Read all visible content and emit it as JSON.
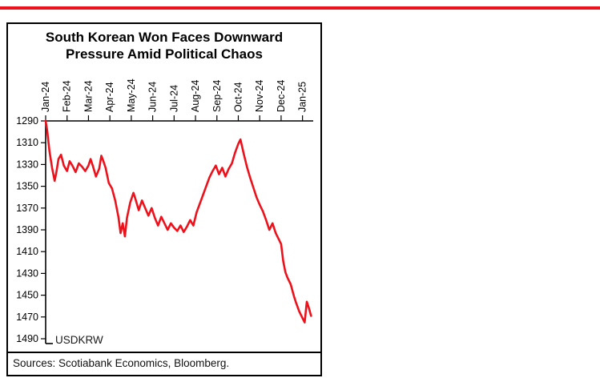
{
  "accent": {
    "color": "#EC111A"
  },
  "chart_card": {
    "title_line1": "South Korean Won Faces Downward",
    "title_line2": "Pressure Amid Political Chaos",
    "sources": "Sources: Scotiabank Economics, Bloomberg."
  },
  "chart_data": {
    "type": "line",
    "title": "South Korean Won Faces Downward Pressure Amid Political Chaos",
    "series_label": "USDKRW",
    "line_color": "#EC111A",
    "axis_color": "#000000",
    "x_tick_labels": [
      "Jan-24",
      "Feb-24",
      "Mar-24",
      "Apr-24",
      "May-24",
      "Jun-24",
      "Jul-24",
      "Aug-24",
      "Sep-24",
      "Oct-24",
      "Nov-24",
      "Dec-24",
      "Jan-25"
    ],
    "y_ticks": [
      1290,
      1310,
      1330,
      1350,
      1370,
      1390,
      1410,
      1430,
      1450,
      1470,
      1490
    ],
    "y_axis_inverted": true,
    "ylim": [
      1290,
      1490
    ],
    "xlim": [
      0,
      12.5
    ],
    "x_unit": "months since Jan-2024",
    "grid": false,
    "legend_position": "none",
    "x": [
      0,
      0.08,
      0.18,
      0.3,
      0.42,
      0.5,
      0.6,
      0.72,
      0.85,
      1,
      1.12,
      1.25,
      1.4,
      1.55,
      1.7,
      1.85,
      2,
      2.1,
      2.2,
      2.35,
      2.5,
      2.6,
      2.7,
      2.8,
      2.95,
      3.1,
      3.25,
      3.4,
      3.5,
      3.6,
      3.7,
      3.8,
      3.95,
      4.1,
      4.2,
      4.35,
      4.5,
      4.65,
      4.8,
      4.95,
      5.1,
      5.25,
      5.4,
      5.55,
      5.7,
      5.85,
      6,
      6.15,
      6.3,
      6.45,
      6.6,
      6.75,
      6.9,
      7.05,
      7.2,
      7.35,
      7.5,
      7.65,
      7.8,
      7.95,
      8.1,
      8.25,
      8.4,
      8.55,
      8.7,
      8.85,
      9,
      9.1,
      9.25,
      9.4,
      9.55,
      9.7,
      9.85,
      10,
      10.15,
      10.3,
      10.45,
      10.6,
      10.75,
      10.9,
      11,
      11.1,
      11.2,
      11.3,
      11.45,
      11.6,
      11.7,
      11.85,
      12,
      12.1,
      12.2,
      12.3,
      12.4
    ],
    "values": [
      1290,
      1300,
      1318,
      1333,
      1345,
      1337,
      1325,
      1321,
      1331,
      1336,
      1327,
      1331,
      1337,
      1329,
      1332,
      1336,
      1331,
      1325,
      1331,
      1341,
      1334,
      1322,
      1327,
      1333,
      1347,
      1352,
      1363,
      1378,
      1393,
      1384,
      1396,
      1379,
      1365,
      1356,
      1362,
      1372,
      1363,
      1370,
      1377,
      1370,
      1379,
      1386,
      1378,
      1384,
      1390,
      1384,
      1388,
      1391,
      1386,
      1392,
      1387,
      1381,
      1386,
      1374,
      1366,
      1358,
      1350,
      1342,
      1336,
      1331,
      1339,
      1333,
      1341,
      1334,
      1329,
      1319,
      1311,
      1307,
      1320,
      1332,
      1342,
      1351,
      1360,
      1367,
      1373,
      1381,
      1390,
      1384,
      1393,
      1399,
      1403,
      1419,
      1429,
      1434,
      1440,
      1451,
      1457,
      1465,
      1471,
      1475,
      1456,
      1462,
      1469
    ]
  }
}
